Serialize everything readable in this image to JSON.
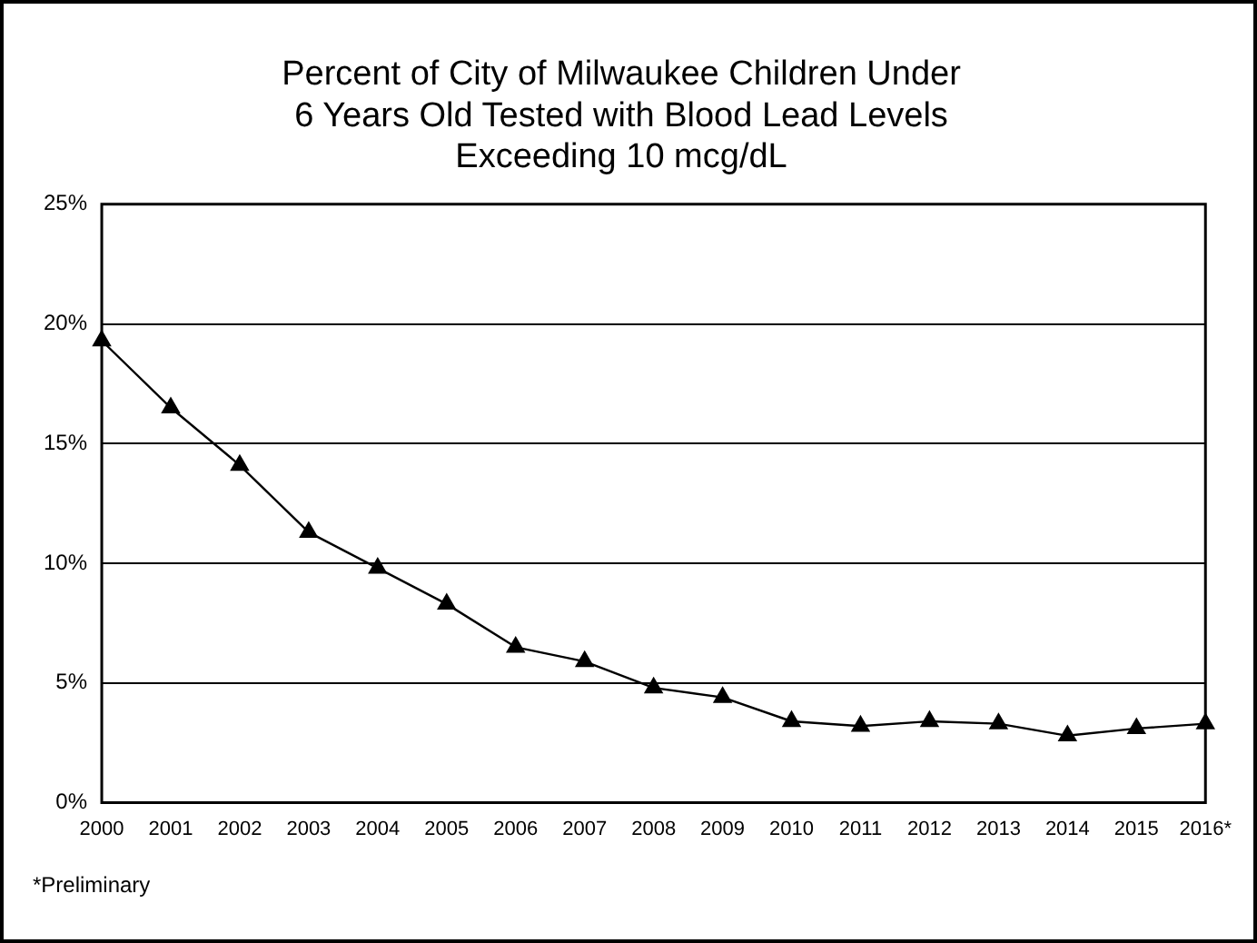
{
  "chart_data": {
    "type": "line",
    "title": "Percent of City of Milwaukee Children Under\n6 Years Old Tested with Blood Lead Levels\nExceeding 10 mcg/dL",
    "categories": [
      "2000",
      "2001",
      "2002",
      "2003",
      "2004",
      "2005",
      "2006",
      "2007",
      "2008",
      "2009",
      "2010",
      "2011",
      "2012",
      "2013",
      "2014",
      "2015",
      "2016*"
    ],
    "series": [
      {
        "color": "#000000",
        "values": [
          19.3,
          16.5,
          14.1,
          11.3,
          9.8,
          8.3,
          6.5,
          5.9,
          4.8,
          4.4,
          3.4,
          3.2,
          3.4,
          3.3,
          2.8,
          3.1,
          3.3
        ]
      }
    ],
    "ylim": [
      0,
      25
    ],
    "yticks": [
      {
        "value": 0,
        "label": "0%"
      },
      {
        "value": 5,
        "label": "5%"
      },
      {
        "value": 10,
        "label": "10%"
      },
      {
        "value": 15,
        "label": "15%"
      },
      {
        "value": 20,
        "label": "20%"
      },
      {
        "value": 25,
        "label": "25%"
      }
    ],
    "grid": "y",
    "legend": false,
    "marker": "triangle",
    "line_style": "solid",
    "annotations": [
      "*Preliminary"
    ]
  }
}
